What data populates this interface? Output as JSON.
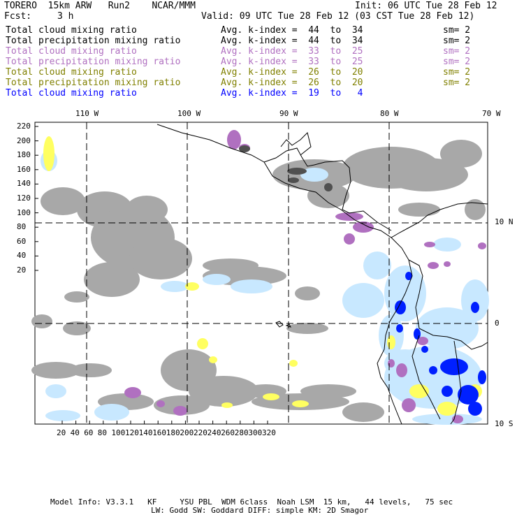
{
  "header": {
    "model": "TORERO  15km ARW   Run2    NCAR/MMM",
    "init": "Init: 06 UTC Tue 28 Feb 12",
    "fcst_label": "Fcst:",
    "fcst_value": "3 h",
    "valid": "Valid: 09 UTC Tue 28 Feb 12 (03 CST Tue 28 Feb 12)"
  },
  "legend": [
    {
      "field": "Total cloud mixing ratio",
      "kindex": "Avg. k-index =  44  to  34",
      "sm": "sm= 2",
      "color": "#000000"
    },
    {
      "field": "Total precipitation mixing ratio",
      "kindex": "Avg. k-index =  44  to  34",
      "sm": "sm= 2",
      "color": "#000000"
    },
    {
      "field": "Total cloud mixing ratio",
      "kindex": "Avg. k-index =  33  to  25",
      "sm": "sm= 2",
      "color": "#b070c0"
    },
    {
      "field": "Total precipitation mixing ratio",
      "kindex": "Avg. k-index =  33  to  25",
      "sm": "sm= 2",
      "color": "#b070c0"
    },
    {
      "field": "Total cloud mixing ratio",
      "kindex": "Avg. k-index =  26  to  20",
      "sm": "sm= 2",
      "color": "#808000"
    },
    {
      "field": "Total precipitation mixing ratio",
      "kindex": "Avg. k-index =  26  to  20",
      "sm": "sm= 2",
      "color": "#808000"
    },
    {
      "field": "Total cloud mixing ratio",
      "kindex": "Avg. k-index =  19  to   4",
      "sm": "",
      "color": "#0000ff"
    }
  ],
  "lon_labels": [
    "110 W",
    "100 W",
    "90 W",
    "80 W",
    "70 W"
  ],
  "lat_labels": [
    "10 N",
    "0",
    "10 S"
  ],
  "y_ticks": [
    "220",
    "200",
    "180",
    "160",
    "140",
    "120",
    "100",
    "80",
    "60",
    "40",
    "20"
  ],
  "x_ticks": [
    "20",
    "40",
    "60",
    "80",
    "100",
    "120",
    "140",
    "160",
    "180",
    "200",
    "220",
    "240",
    "260",
    "280",
    "300",
    "320"
  ],
  "footer": {
    "line1": "Model Info: V3.3.1   KF     YSU PBL  WDM 6class  Noah LSM  15 km,   44 levels,   75 sec",
    "line2": "LW: Godd SW: Goddard DIFF: simple KM: 2D Smagor"
  },
  "colors": {
    "gray_field": "#a8a8a8",
    "dark_gray": "#505050",
    "purple": "#b070c0",
    "yellow": "#ffff60",
    "light_blue": "#c8e8ff",
    "blue": "#0020ff"
  }
}
